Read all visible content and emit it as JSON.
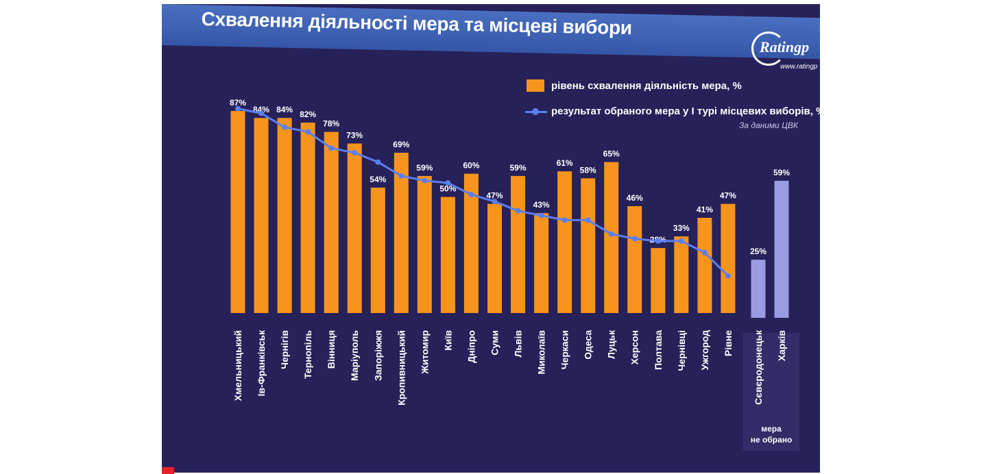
{
  "title": "Схвалення діяльності мера та місцеві вибори",
  "logo": {
    "name": "Ratingp",
    "url": "www.ratingp"
  },
  "legend": {
    "bar_label": "рівень схвалення діяльність мера, %",
    "line_label": "результат обраного мера у І турі місцевих виборів, %"
  },
  "source_note": "За даними ЦВК",
  "no_mayor_note_line1": "мера",
  "no_mayor_note_line2": "не обрано",
  "colors": {
    "bar": "#f7941d",
    "bar_no_mayor": "#9a9be0",
    "line": "#5b7ff0",
    "background": "#262158"
  },
  "chart_data": {
    "type": "bar",
    "ylim": [
      0,
      100
    ],
    "categories": [
      "Хмельницький",
      "Ів-Франківськ",
      "Чернігів",
      "Тернопіль",
      "Вінниця",
      "Маріуполь",
      "Запоріжжя",
      "Кропивницький",
      "Житомир",
      "Київ",
      "Дніпро",
      "Суми",
      "Львів",
      "Миколаїв",
      "Черкаси",
      "Одеса",
      "Луцьк",
      "Херсон",
      "Полтава",
      "Чернівці",
      "Ужгород",
      "Рівне",
      "Сєвєродонецьк",
      "Харків"
    ],
    "series": [
      {
        "name": "рівень схвалення діяльність мера, %",
        "type": "bar",
        "values": [
          87,
          84,
          84,
          82,
          78,
          73,
          54,
          69,
          59,
          50,
          60,
          47,
          59,
          43,
          61,
          58,
          65,
          46,
          28,
          33,
          41,
          47,
          25,
          59
        ],
        "labels": [
          "87%",
          "84%",
          "84%",
          "82%",
          "78%",
          "73%",
          "54%",
          "69%",
          "59%",
          "50%",
          "60%",
          "47%",
          "59%",
          "43%",
          "61%",
          "58%",
          "65%",
          "46%",
          "28%",
          "33%",
          "41%",
          "47%",
          "25%",
          "59%"
        ],
        "no_mayor_elected": [
          false,
          false,
          false,
          false,
          false,
          false,
          false,
          false,
          false,
          false,
          false,
          false,
          false,
          false,
          false,
          false,
          false,
          false,
          false,
          false,
          false,
          false,
          true,
          true
        ]
      },
      {
        "name": "результат обраного мера у І турі місцевих виборів, %",
        "type": "line",
        "values": [
          88,
          86,
          80,
          78,
          71,
          69,
          65,
          59,
          57,
          56,
          51,
          48,
          44,
          42,
          40,
          40,
          34,
          32,
          31,
          31,
          26,
          16,
          null,
          null
        ]
      }
    ]
  }
}
